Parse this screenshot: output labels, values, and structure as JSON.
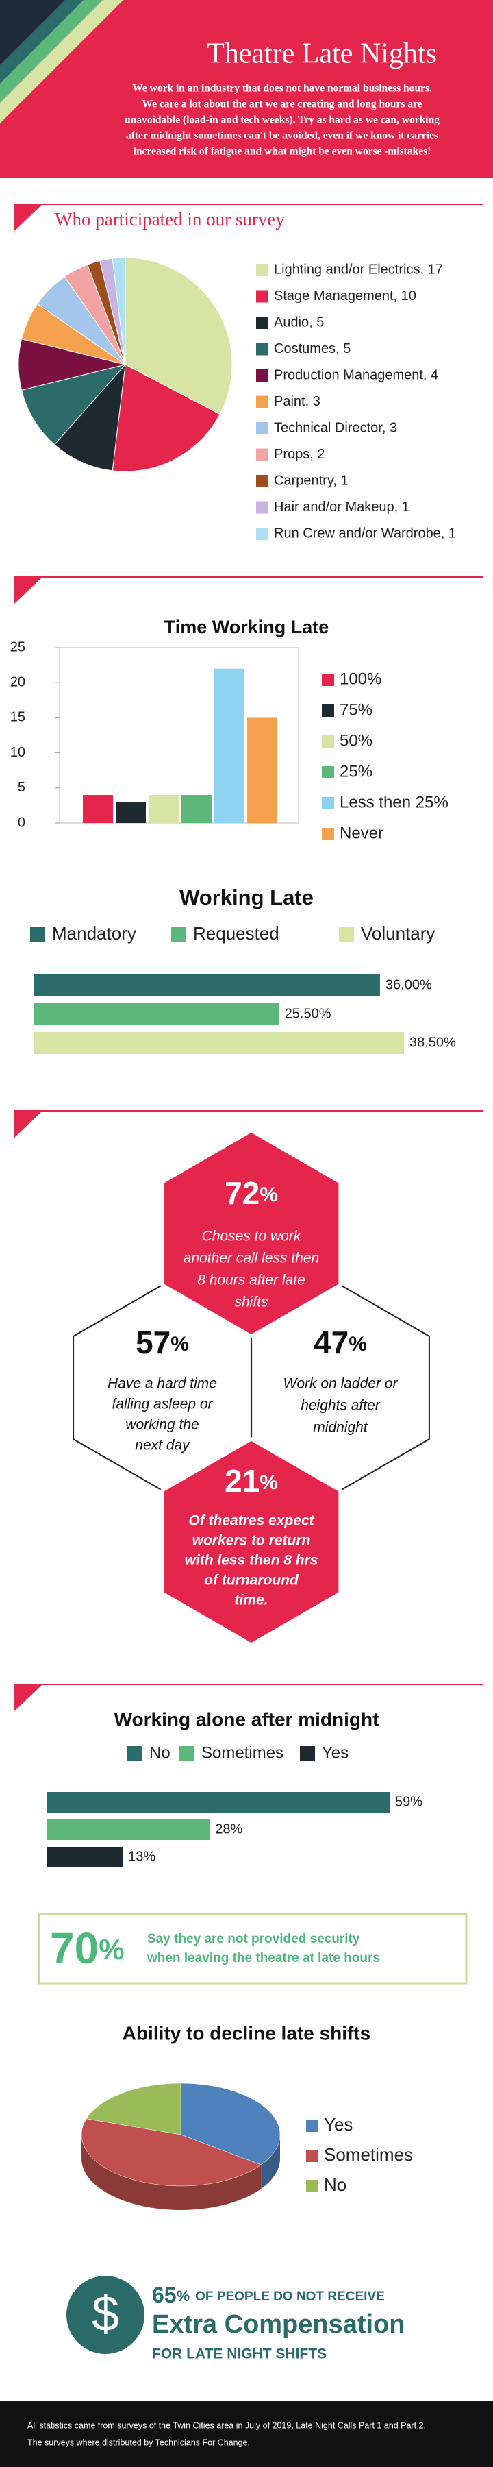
{
  "header": {
    "title": "Theatre Late Nights",
    "intro": [
      "We work in an industry that does not have normal business hours.",
      "We care a lot about the art we are creating and long hours are",
      "unavoidable (load-in and tech weeks).  Try as hard as we can, working",
      "after midnight sometimes can't be avoided, even if we know it carries",
      "increased risk of fatigue and what might be even worse -mistakes!"
    ]
  },
  "chart_data": [
    {
      "type": "pie",
      "title": "Who participated in our survey",
      "categories": [
        "Lighting and/or Electrics, 17",
        "Stage Management, 10",
        "Audio, 5",
        "Costumes, 5",
        "Production Management, 4",
        "Paint, 3",
        "Technical Director, 3",
        "Props, 2",
        "Carpentry, 1",
        "Hair and/or Makeup, 1",
        "Run Crew and/or Wardrobe, 1"
      ],
      "values": [
        17,
        10,
        5,
        5,
        4,
        3,
        3,
        2,
        1,
        1,
        1
      ],
      "colors": [
        "#d7e4a3",
        "#e5264c",
        "#1f2a30",
        "#2b6c6a",
        "#7a1140",
        "#f5a04c",
        "#a3c6ea",
        "#f2a3a3",
        "#9c4f1c",
        "#c9b3e2",
        "#abe1f1"
      ],
      "legend": "right"
    },
    {
      "type": "bar",
      "orientation": "vertical",
      "title": "Time Working Late",
      "categories": [
        "100%",
        "75%",
        "50%",
        "25%",
        "Less then 25%",
        "Never"
      ],
      "values": [
        4,
        3,
        4,
        4,
        22,
        15
      ],
      "colors": [
        "#e5264c",
        "#1f2a30",
        "#d7e4a3",
        "#5cb87a",
        "#8fd3f2",
        "#f5a04c"
      ],
      "ylim": [
        0,
        25
      ],
      "yticks": [
        0,
        5,
        10,
        15,
        20,
        25
      ],
      "legend": "right"
    },
    {
      "type": "bar",
      "orientation": "horizontal",
      "title": "Working Late",
      "categories": [
        "Mandatory",
        "Requested",
        "Voluntary"
      ],
      "values": [
        36,
        25.5,
        38.5
      ],
      "value_labels": [
        "36.00%",
        "25.50%",
        "38.50%"
      ],
      "colors": [
        "#2b6c6a",
        "#5cb87a",
        "#d7e4a3"
      ],
      "legend": "top"
    },
    {
      "type": "bar",
      "orientation": "horizontal",
      "title": "Working alone after midnight",
      "categories": [
        "No",
        "Sometimes",
        "Yes"
      ],
      "values": [
        59,
        28,
        13
      ],
      "value_labels": [
        "59%",
        "28%",
        "13%"
      ],
      "colors": [
        "#2b6c6a",
        "#5cb87a",
        "#1f2a30"
      ],
      "legend": "top"
    },
    {
      "type": "pie",
      "three_d": true,
      "title": "Ability to decline late shifts",
      "categories": [
        "Yes",
        "Sometimes",
        "No"
      ],
      "values": [
        35,
        45,
        20
      ],
      "colors": [
        "#4f81bd",
        "#c0504d",
        "#9bbb59"
      ],
      "legend": "right"
    }
  ],
  "hexagons": [
    {
      "value": "72",
      "unit": "%",
      "lines": [
        "Choses to work",
        "another call less then",
        "8 hours after late",
        "shifts"
      ]
    },
    {
      "value": "57",
      "unit": "%",
      "lines": [
        "Have a hard time",
        "falling asleep or",
        "working the",
        "next day"
      ]
    },
    {
      "value": "47",
      "unit": "%",
      "lines": [
        "Work on ladder or",
        "heights after",
        "midnight"
      ]
    },
    {
      "value": "21",
      "unit": "%",
      "lines": [
        "Of theatres expect",
        "workers to return",
        "with less then 8 hrs",
        "of turnaround",
        "time."
      ]
    }
  ],
  "callout": {
    "value": "70",
    "unit": "%",
    "lines": [
      "Say they are not provided security",
      "when leaving the theatre at late hours"
    ]
  },
  "compensation": {
    "icon": "$",
    "value": "65",
    "unit": "%",
    "lead": "OF PEOPLE DO NOT RECEIVE",
    "headline": "Extra Compensation",
    "tail": "FOR LATE NIGHT SHIFTS"
  },
  "footer": {
    "lines": [
      "All statistics came from  surveys of the Twin Cities area in July of 2019, Late Night Calls Part 1 and Part 2.",
      "The surveys where distributed by Technicians For Change."
    ]
  }
}
